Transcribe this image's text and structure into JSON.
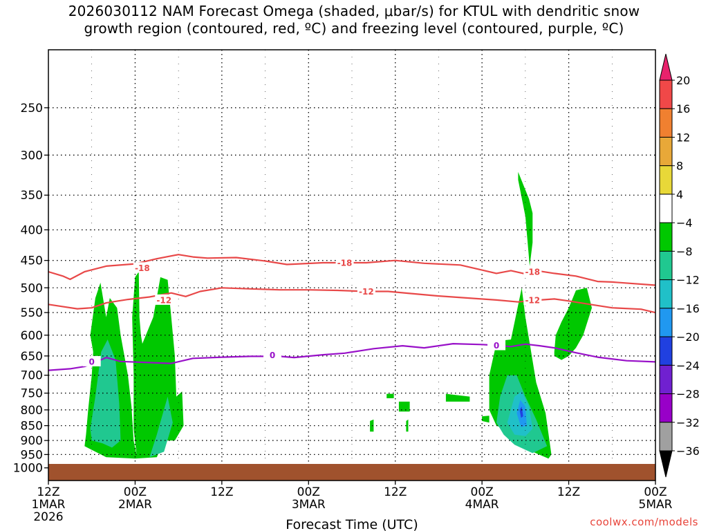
{
  "title": {
    "line1": "2026030112 NAM Forecast Omega (shaded, μbar/s) for KTUL with dendritic snow",
    "line2": "growth region (contoured, red, ºC) and freezing level (contoured, purple, ºC)"
  },
  "credit": "coolwx.com/models",
  "chart_data": {
    "type": "area",
    "xlabel": "Forecast Time (UTC)",
    "ylabel": "",
    "x_range_hours": [
      0,
      84
    ],
    "y_scale": "log-pressure",
    "y_range_hPa": [
      1050,
      200
    ],
    "grid": true,
    "y_ticks": [
      250,
      300,
      350,
      400,
      450,
      500,
      550,
      600,
      650,
      700,
      750,
      800,
      850,
      900,
      950,
      1000
    ],
    "x_ticks": [
      {
        "hour": 0,
        "line1": "12Z",
        "line2": "1MAR",
        "line3": "2026"
      },
      {
        "hour": 12,
        "line1": "00Z",
        "line2": "2MAR",
        "line3": ""
      },
      {
        "hour": 24,
        "line1": "12Z",
        "line2": "",
        "line3": ""
      },
      {
        "hour": 36,
        "line1": "00Z",
        "line2": "3MAR",
        "line3": ""
      },
      {
        "hour": 48,
        "line1": "12Z",
        "line2": "",
        "line3": ""
      },
      {
        "hour": 60,
        "line1": "00Z",
        "line2": "4MAR",
        "line3": ""
      },
      {
        "hour": 72,
        "line1": "12Z",
        "line2": "",
        "line3": ""
      },
      {
        "hour": 84,
        "line1": "00Z",
        "line2": "5MAR",
        "line3": ""
      }
    ],
    "colorbar": {
      "labels": [
        "20",
        "16",
        "12",
        "8",
        "4",
        "−4",
        "−8",
        "−12",
        "−16",
        "−20",
        "−24",
        "−28",
        "−32",
        "−36"
      ],
      "colors": [
        "#e8226c",
        "#f04848",
        "#f08030",
        "#e8a838",
        "#e8d838",
        "#ffffff",
        "#00c800",
        "#20c890",
        "#20c0c8",
        "#2098f0",
        "#2040e0",
        "#7020d0",
        "#9800c8",
        "#a0a0a0",
        "#000000"
      ]
    },
    "contours": [
      {
        "name": "-18",
        "color": "#e84848",
        "points": [
          [
            0,
            470
          ],
          [
            2,
            478
          ],
          [
            3,
            484
          ],
          [
            5,
            470
          ],
          [
            8,
            460
          ],
          [
            12,
            456
          ],
          [
            15,
            447
          ],
          [
            18,
            440
          ],
          [
            20,
            444
          ],
          [
            22,
            446
          ],
          [
            26,
            445
          ],
          [
            30,
            451
          ],
          [
            33,
            457
          ],
          [
            38,
            454
          ],
          [
            44,
            454
          ],
          [
            48,
            450
          ],
          [
            52,
            455
          ],
          [
            57,
            458
          ],
          [
            60,
            467
          ],
          [
            62,
            473
          ],
          [
            64,
            468
          ],
          [
            66,
            474
          ],
          [
            68,
            469
          ],
          [
            70,
            473
          ],
          [
            73,
            478
          ],
          [
            76,
            488
          ],
          [
            78,
            489
          ],
          [
            84,
            495
          ]
        ],
        "label_positions": [
          [
            13,
            463
          ],
          [
            41,
            454
          ],
          [
            67,
            470
          ]
        ]
      },
      {
        "name": "-12",
        "color": "#e84848",
        "points": [
          [
            0,
            533
          ],
          [
            4,
            542
          ],
          [
            6,
            540
          ],
          [
            8,
            530
          ],
          [
            11,
            523
          ],
          [
            14,
            518
          ],
          [
            17,
            510
          ],
          [
            19,
            517
          ],
          [
            21,
            507
          ],
          [
            24,
            500
          ],
          [
            28,
            502
          ],
          [
            32,
            504
          ],
          [
            36,
            504
          ],
          [
            40,
            505
          ],
          [
            44,
            507
          ],
          [
            47,
            507
          ],
          [
            50,
            511
          ],
          [
            54,
            516
          ],
          [
            58,
            520
          ],
          [
            62,
            524
          ],
          [
            65,
            528
          ],
          [
            68,
            524
          ],
          [
            70,
            522
          ],
          [
            72,
            526
          ],
          [
            75,
            533
          ],
          [
            78,
            540
          ],
          [
            82,
            543
          ],
          [
            84,
            550
          ]
        ],
        "label_positions": [
          [
            16,
            524
          ],
          [
            44,
            507
          ],
          [
            67,
            524
          ]
        ]
      },
      {
        "name": "0",
        "color": "#9810c8",
        "points": [
          [
            0,
            687
          ],
          [
            3,
            683
          ],
          [
            5,
            677
          ],
          [
            6,
            670
          ],
          [
            8,
            654
          ],
          [
            10,
            664
          ],
          [
            13,
            666
          ],
          [
            17,
            669
          ],
          [
            20,
            656
          ],
          [
            24,
            653
          ],
          [
            28,
            651
          ],
          [
            32,
            651
          ],
          [
            34,
            654
          ],
          [
            38,
            647
          ],
          [
            41,
            643
          ],
          [
            45,
            632
          ],
          [
            49,
            625
          ],
          [
            52,
            630
          ],
          [
            56,
            620
          ],
          [
            60,
            622
          ],
          [
            62,
            624
          ],
          [
            64,
            627
          ],
          [
            66,
            621
          ],
          [
            68,
            625
          ],
          [
            70,
            630
          ],
          [
            73,
            642
          ],
          [
            76,
            653
          ],
          [
            80,
            662
          ],
          [
            84,
            665
          ]
        ],
        "label_positions": [
          [
            6,
            664
          ],
          [
            31,
            648
          ],
          [
            62,
            624
          ]
        ]
      }
    ],
    "omega_regions": [
      {
        "level": "-4",
        "color": "#00c800",
        "points": [
          [
            5,
            920
          ],
          [
            5.2,
            880
          ],
          [
            5.5,
            800
          ],
          [
            6,
            700
          ],
          [
            6.2,
            640
          ],
          [
            5.8,
            600
          ],
          [
            6.5,
            520
          ],
          [
            7.2,
            490
          ],
          [
            8,
            560
          ],
          [
            8.5,
            520
          ],
          [
            9.5,
            540
          ],
          [
            10,
            600
          ],
          [
            11,
            700
          ],
          [
            11.5,
            790
          ],
          [
            11.8,
            900
          ],
          [
            12.2,
            950
          ],
          [
            11.8,
            860
          ],
          [
            11.8,
            700
          ],
          [
            11.6,
            560
          ],
          [
            12,
            480
          ],
          [
            12.5,
            470
          ],
          [
            12.6,
            560
          ],
          [
            12.8,
            600
          ],
          [
            13,
            620
          ],
          [
            14.5,
            560
          ],
          [
            15.5,
            480
          ],
          [
            16.5,
            485
          ],
          [
            17,
            560
          ],
          [
            17.5,
            650
          ],
          [
            17.7,
            760
          ],
          [
            18.5,
            745
          ],
          [
            18.7,
            850
          ],
          [
            17.5,
            900
          ],
          [
            16,
            900
          ],
          [
            15,
            960
          ],
          [
            12,
            965
          ],
          [
            8,
            960
          ],
          [
            5,
            920
          ]
        ]
      },
      {
        "level": "-4",
        "color": "#00c800",
        "points": [
          [
            65,
            320
          ],
          [
            66.5,
            355
          ],
          [
            67,
            375
          ],
          [
            67,
            420
          ],
          [
            66.6,
            460
          ],
          [
            66,
            380
          ],
          [
            65,
            330
          ]
        ]
      },
      {
        "level": "-4",
        "color": "#00c800",
        "points": [
          [
            61,
            700
          ],
          [
            62,
            618
          ],
          [
            63,
            612
          ],
          [
            64,
            610
          ],
          [
            64,
            610
          ],
          [
            65.5,
            500
          ],
          [
            66,
            560
          ],
          [
            67.5,
            720
          ],
          [
            68.8,
            810
          ],
          [
            69.6,
            950
          ],
          [
            69.2,
            965
          ],
          [
            67,
            940
          ],
          [
            64,
            870
          ],
          [
            62,
            850
          ],
          [
            61,
            800
          ],
          [
            61,
            700
          ]
        ]
      },
      {
        "level": "-4",
        "color": "#00c800",
        "points": [
          [
            70,
            640
          ],
          [
            70.2,
            600
          ],
          [
            71,
            570
          ],
          [
            72,
            540
          ],
          [
            73,
            505
          ],
          [
            74.5,
            500
          ],
          [
            75.2,
            540
          ],
          [
            74,
            600
          ],
          [
            73,
            630
          ],
          [
            72,
            650
          ],
          [
            71,
            660
          ],
          [
            70,
            650
          ]
        ]
      },
      {
        "level": "-4",
        "color": "#00c800",
        "points": [
          [
            46.8,
            752
          ],
          [
            47.8,
            752
          ],
          [
            47.8,
            765
          ],
          [
            46.8,
            765
          ]
        ]
      },
      {
        "level": "-4",
        "color": "#00c800",
        "points": [
          [
            55,
            752
          ],
          [
            58.3,
            760
          ],
          [
            58.3,
            775
          ],
          [
            55,
            775
          ]
        ]
      },
      {
        "level": "-4",
        "color": "#00c800",
        "points": [
          [
            48.5,
            775
          ],
          [
            50,
            775
          ],
          [
            50,
            805
          ],
          [
            48.5,
            805
          ]
        ]
      },
      {
        "level": "-4",
        "color": "#00c800",
        "points": [
          [
            44.5,
            835
          ],
          [
            45,
            830
          ],
          [
            45,
            870
          ],
          [
            44.5,
            870
          ]
        ]
      },
      {
        "level": "-4",
        "color": "#00c800",
        "points": [
          [
            49.5,
            835
          ],
          [
            49.8,
            830
          ],
          [
            49.8,
            870
          ],
          [
            49.5,
            870
          ]
        ]
      },
      {
        "level": "-4",
        "color": "#00c800",
        "points": [
          [
            60,
            820
          ],
          [
            61,
            818
          ],
          [
            61,
            840
          ],
          [
            60,
            835
          ]
        ]
      },
      {
        "level": "-8",
        "color": "#20c890",
        "points": [
          [
            5.8,
            860
          ],
          [
            6.5,
            760
          ],
          [
            7.3,
            640
          ],
          [
            8.2,
            610
          ],
          [
            9.3,
            660
          ],
          [
            9.8,
            780
          ],
          [
            10,
            900
          ],
          [
            8.8,
            925
          ],
          [
            7.5,
            910
          ],
          [
            6,
            900
          ]
        ]
      },
      {
        "level": "-8",
        "color": "#20c890",
        "points": [
          [
            14,
            960
          ],
          [
            15,
            880
          ],
          [
            16.5,
            760
          ],
          [
            17.2,
            840
          ],
          [
            16,
            940
          ]
        ]
      },
      {
        "level": "-8",
        "color": "#20c890",
        "points": [
          [
            62,
            840
          ],
          [
            62.5,
            760
          ],
          [
            63.5,
            700
          ],
          [
            64.8,
            700
          ],
          [
            66,
            760
          ],
          [
            67.5,
            830
          ],
          [
            69,
            920
          ],
          [
            67,
            945
          ],
          [
            64.5,
            915
          ],
          [
            63,
            880
          ]
        ]
      },
      {
        "level": "-12",
        "color": "#20c0c8",
        "points": [
          [
            63.5,
            840
          ],
          [
            64.5,
            760
          ],
          [
            65.5,
            745
          ],
          [
            66.5,
            790
          ],
          [
            67,
            860
          ],
          [
            66,
            885
          ],
          [
            64.5,
            880
          ]
        ]
      },
      {
        "level": "-16",
        "color": "#2098f0",
        "points": [
          [
            64.8,
            810
          ],
          [
            65.3,
            770
          ],
          [
            66,
            790
          ],
          [
            66.2,
            850
          ],
          [
            65.4,
            855
          ]
        ]
      },
      {
        "level": "-20",
        "color": "#2040e0",
        "points": [
          [
            65.2,
            800
          ],
          [
            65.5,
            790
          ],
          [
            65.7,
            820
          ],
          [
            65.4,
            825
          ]
        ]
      }
    ],
    "terrain": {
      "surface_hPa": 985,
      "color": "#a0522d"
    }
  }
}
